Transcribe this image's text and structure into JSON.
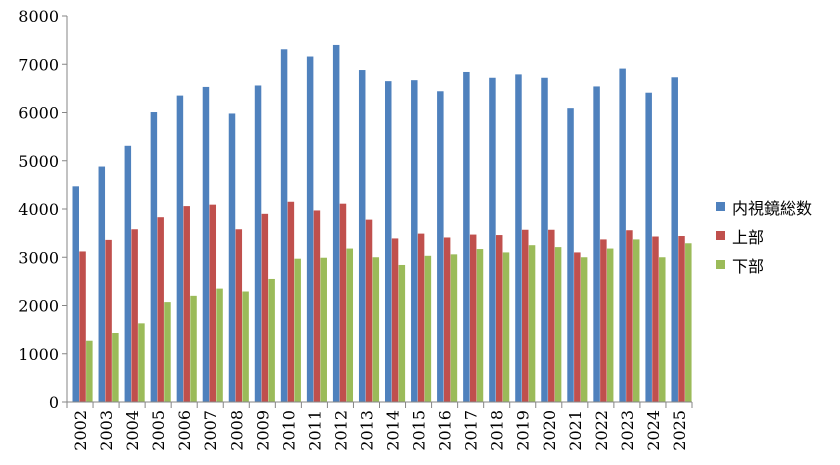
{
  "chart_data": {
    "type": "bar",
    "title": "",
    "xlabel": "",
    "ylabel": "",
    "ylim": [
      0,
      8000
    ],
    "yticks": [
      0,
      1000,
      2000,
      3000,
      4000,
      5000,
      6000,
      7000,
      8000
    ],
    "grid": false,
    "legend_position": "right",
    "categories": [
      "2002",
      "2003",
      "2004",
      "2005",
      "2006",
      "2007",
      "2008",
      "2009",
      "2010",
      "2011",
      "2012",
      "2013",
      "2014",
      "2015",
      "2016",
      "2017",
      "2018",
      "2019",
      "2020",
      "2021",
      "2022",
      "2023",
      "2024",
      "2025"
    ],
    "series": [
      {
        "name": "内視鏡総数",
        "color": "#4f81bd",
        "values": [
          4470,
          4880,
          5310,
          6010,
          6350,
          6530,
          5980,
          6560,
          7310,
          7160,
          7400,
          6880,
          6650,
          6670,
          6440,
          6840,
          6720,
          6790,
          6720,
          6090,
          6540,
          6910,
          6410,
          6730
        ]
      },
      {
        "name": "上部",
        "color": "#c0504d",
        "values": [
          3120,
          3360,
          3580,
          3830,
          4060,
          4090,
          3580,
          3900,
          4150,
          3970,
          4110,
          3780,
          3390,
          3490,
          3410,
          3470,
          3460,
          3570,
          3570,
          3100,
          3370,
          3560,
          3430,
          3440
        ]
      },
      {
        "name": "下部",
        "color": "#9bbb59",
        "values": [
          1270,
          1430,
          1630,
          2070,
          2200,
          2350,
          2290,
          2550,
          2970,
          2990,
          3180,
          3000,
          2840,
          3030,
          3060,
          3170,
          3100,
          3250,
          3210,
          3000,
          3180,
          3370,
          3000,
          3290
        ]
      }
    ]
  }
}
